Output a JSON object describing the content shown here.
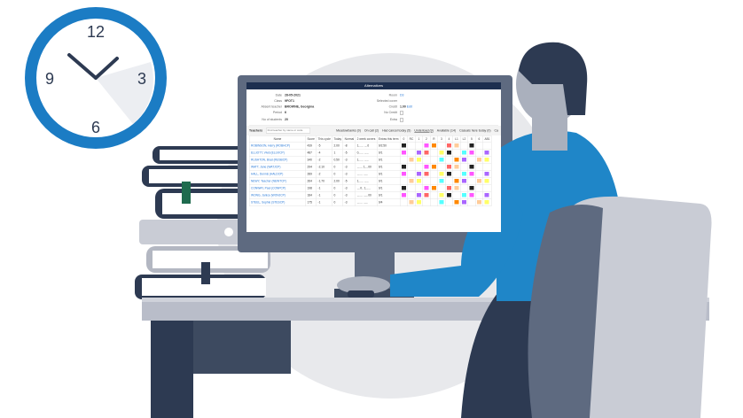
{
  "clock": {
    "numbers": [
      "12",
      "3",
      "6",
      "9"
    ],
    "time": "10:10"
  },
  "screen": {
    "title": "Alternatives",
    "fields": [
      {
        "label": "Date",
        "value": "28-05-2021"
      },
      {
        "label": "Class",
        "value": "9FOT1"
      },
      {
        "label": "Absent teacher",
        "value": "BROWNE, Georgina"
      },
      {
        "label": "Period",
        "value": "6"
      },
      {
        "label": "No of students",
        "value": "20"
      }
    ],
    "right_fields": [
      {
        "label": "Room",
        "value": "D3"
      },
      {
        "label": "Selected cover",
        "value": ""
      },
      {
        "label": "Credit",
        "value": "1.00",
        "action": "Edit"
      },
      {
        "label": "No Credit",
        "value": ""
      },
      {
        "label": "Extra",
        "value": ""
      }
    ],
    "teachers_label": "Teachers",
    "search_placeholder": "Find teacher by name or code",
    "filters": [
      "Meadowbanks (0)",
      "On call (2)",
      "Had cancel today (5)",
      "Underload (9)",
      "Available (14)",
      "Casuals here today (0)",
      "Ca"
    ],
    "columns": [
      "Name",
      "Score",
      "This cycle",
      "Today",
      "Normal",
      "2 week covers",
      "Extras this term",
      "0",
      "RC",
      "1",
      "2",
      "R",
      "3",
      "4",
      "L1",
      "L2",
      "5",
      "6",
      "AB1"
    ],
    "rows": [
      {
        "name": "ROBINSON, Harry (ROBHCP)",
        "score": "439",
        "cycle": "-5",
        "today": "2.00",
        "normal": "-8",
        "weeks": "1...... ....0",
        "extras": "0/2.50"
      },
      {
        "name": "ELLIOTT, Vivid (ELLVICP)",
        "score": "487",
        "cycle": "-4",
        "today": "1",
        "normal": "-5",
        "weeks": "0...... ......",
        "extras": "0/1"
      },
      {
        "name": "RUSHTON, Brad (RUSBCP)",
        "score": "340",
        "cycle": "-2",
        "today": "0.50",
        "normal": "-3",
        "weeks": "1...... ......",
        "extras": "0/1"
      },
      {
        "name": "WATT, Jane (WATJCP)",
        "score": "294",
        "cycle": "-2.10",
        "today": "0",
        "normal": "-3",
        "weeks": "....... 1....00",
        "extras": "0/1"
      },
      {
        "name": "HALL, Dennis (HALDCP)",
        "score": "289",
        "cycle": "-2",
        "today": "0",
        "normal": "-3",
        "weeks": "....... ......",
        "extras": "0/1"
      },
      {
        "name": "NEWY, Teacher (NEWTCP)",
        "score": "264",
        "cycle": "-1.70",
        "today": "2.00",
        "normal": "-5",
        "weeks": "1...... ......",
        "extras": "0/1"
      },
      {
        "name": "CONWAY, Paul (CONPCP)",
        "score": "198",
        "cycle": "-1",
        "today": "0",
        "normal": "-3",
        "weeks": "....0.. 1......",
        "extras": "0/1"
      },
      {
        "name": "WONG, Janice (WONJCP)",
        "score": "184",
        "cycle": "-1",
        "today": "0",
        "normal": "-3",
        "weeks": "....... ......00",
        "extras": "0/1"
      },
      {
        "name": "STEEL, Sophie (STESCP)",
        "score": "175",
        "cycle": "-1",
        "today": "0",
        "normal": "-3",
        "weeks": "....... ......",
        "extras": "0/4"
      }
    ]
  },
  "colors": {
    "clock_ring": "#1b7cc4",
    "shirt": "#1f86c8",
    "desk": "#b9bdc9",
    "navy": "#2d3a52",
    "bg_circle": "#e8e9ec",
    "book_green": "#1f6b4e"
  }
}
